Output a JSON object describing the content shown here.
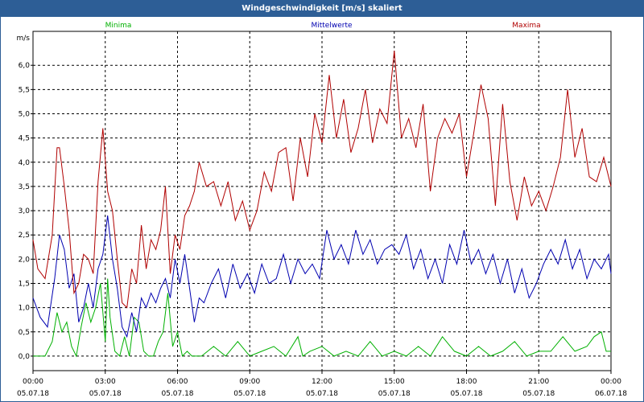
{
  "window": {
    "title": "Windgeschwindigkeit [m/s] skaliert"
  },
  "chart_data": {
    "type": "line",
    "title": "Windgeschwindigkeit [m/s] skaliert",
    "ylabel": "m/s",
    "xlabel": "",
    "ylim": [
      -0.3,
      6.7
    ],
    "yticks": [
      "0,0",
      "0,5",
      "1,0",
      "1,5",
      "2,0",
      "2,5",
      "3,0",
      "3,5",
      "4,0",
      "4,5",
      "5,0",
      "5,5",
      "6,0"
    ],
    "xlim_hours": [
      0,
      24
    ],
    "xticks": [
      {
        "time": "00:00",
        "date": "05.07.18"
      },
      {
        "time": "03:00",
        "date": "05.07.18"
      },
      {
        "time": "06:00",
        "date": "05.07.18"
      },
      {
        "time": "09:00",
        "date": "05.07.18"
      },
      {
        "time": "12:00",
        "date": "05.07.18"
      },
      {
        "time": "15:00",
        "date": "05.07.18"
      },
      {
        "time": "18:00",
        "date": "05.07.18"
      },
      {
        "time": "21:00",
        "date": "05.07.18"
      },
      {
        "time": "00:00",
        "date": "06.07.18"
      }
    ],
    "grid": true,
    "series": [
      {
        "name": "Minima",
        "color": "#00b000",
        "x": [
          0,
          0.5,
          0.8,
          1.0,
          1.2,
          1.4,
          1.6,
          1.8,
          2.0,
          2.2,
          2.4,
          2.6,
          2.8,
          3.0,
          3.1,
          3.2,
          3.4,
          3.6,
          3.8,
          4.0,
          4.2,
          4.4,
          4.6,
          4.8,
          5.0,
          5.2,
          5.4,
          5.6,
          5.8,
          6.0,
          6.2,
          6.4,
          6.6,
          6.8,
          7.0,
          7.5,
          8.0,
          8.5,
          9.0,
          9.5,
          10.0,
          10.5,
          11.0,
          11.2,
          11.5,
          12.0,
          12.5,
          13.0,
          13.5,
          14.0,
          14.5,
          15.0,
          15.5,
          16.0,
          16.5,
          17.0,
          17.5,
          18.0,
          18.5,
          19.0,
          19.5,
          20.0,
          20.5,
          21.0,
          21.5,
          22.0,
          22.5,
          23.0,
          23.3,
          23.6,
          23.8,
          24.0
        ],
        "values": [
          0.0,
          0.0,
          0.3,
          0.9,
          0.5,
          0.7,
          0.2,
          0.0,
          0.6,
          1.1,
          0.7,
          1.0,
          1.5,
          0.3,
          1.6,
          0.8,
          0.1,
          0.0,
          0.4,
          0.0,
          0.8,
          0.7,
          0.1,
          0.0,
          0.0,
          0.3,
          0.5,
          1.3,
          0.2,
          0.5,
          0.0,
          0.1,
          0.0,
          0.0,
          0.0,
          0.2,
          0.0,
          0.3,
          0.0,
          0.1,
          0.2,
          0.0,
          0.4,
          0.0,
          0.1,
          0.2,
          0.0,
          0.1,
          0.0,
          0.3,
          0.0,
          0.1,
          0.0,
          0.2,
          0.0,
          0.4,
          0.1,
          0.0,
          0.2,
          0.0,
          0.1,
          0.3,
          0.0,
          0.1,
          0.1,
          0.4,
          0.1,
          0.2,
          0.4,
          0.5,
          0.1,
          0.1
        ]
      },
      {
        "name": "Mittelwerte",
        "color": "#0000b0",
        "x": [
          0,
          0.3,
          0.6,
          0.9,
          1.1,
          1.3,
          1.5,
          1.7,
          1.9,
          2.1,
          2.3,
          2.5,
          2.7,
          2.9,
          3.1,
          3.3,
          3.5,
          3.7,
          3.9,
          4.1,
          4.3,
          4.5,
          4.7,
          4.9,
          5.1,
          5.3,
          5.5,
          5.7,
          5.9,
          6.1,
          6.3,
          6.5,
          6.7,
          6.9,
          7.1,
          7.4,
          7.7,
          8.0,
          8.3,
          8.6,
          8.9,
          9.2,
          9.5,
          9.8,
          10.1,
          10.4,
          10.7,
          11.0,
          11.3,
          11.6,
          11.9,
          12.2,
          12.5,
          12.8,
          13.1,
          13.4,
          13.7,
          14.0,
          14.3,
          14.6,
          14.9,
          15.2,
          15.5,
          15.8,
          16.1,
          16.4,
          16.7,
          17.0,
          17.3,
          17.6,
          17.9,
          18.2,
          18.5,
          18.8,
          19.1,
          19.4,
          19.7,
          20.0,
          20.3,
          20.6,
          20.9,
          21.2,
          21.5,
          21.8,
          22.1,
          22.4,
          22.7,
          23.0,
          23.3,
          23.6,
          23.9,
          24.0
        ],
        "values": [
          1.2,
          0.8,
          0.6,
          1.6,
          2.5,
          2.2,
          1.4,
          1.7,
          0.7,
          1.0,
          1.5,
          1.0,
          1.8,
          2.1,
          2.9,
          2.0,
          1.4,
          0.6,
          0.4,
          0.9,
          0.5,
          1.2,
          1.0,
          1.3,
          1.1,
          1.4,
          1.6,
          1.2,
          2.0,
          1.5,
          2.1,
          1.4,
          0.7,
          1.2,
          1.1,
          1.5,
          1.8,
          1.2,
          1.9,
          1.4,
          1.7,
          1.3,
          1.9,
          1.5,
          1.6,
          2.1,
          1.5,
          2.0,
          1.7,
          1.9,
          1.6,
          2.6,
          2.0,
          2.3,
          1.9,
          2.6,
          2.1,
          2.4,
          1.9,
          2.2,
          2.3,
          2.1,
          2.5,
          1.8,
          2.2,
          1.6,
          2.0,
          1.5,
          2.3,
          1.9,
          2.6,
          1.9,
          2.2,
          1.7,
          2.1,
          1.5,
          2.0,
          1.3,
          1.8,
          1.2,
          1.5,
          1.9,
          2.2,
          1.9,
          2.4,
          1.8,
          2.2,
          1.6,
          2.0,
          1.8,
          2.1,
          1.7
        ]
      },
      {
        "name": "Maxima",
        "color": "#b00000",
        "x": [
          0,
          0.2,
          0.5,
          0.8,
          1.0,
          1.1,
          1.3,
          1.5,
          1.7,
          1.9,
          2.1,
          2.3,
          2.5,
          2.7,
          2.9,
          3.1,
          3.3,
          3.5,
          3.7,
          3.9,
          4.1,
          4.3,
          4.5,
          4.7,
          4.9,
          5.1,
          5.3,
          5.5,
          5.7,
          5.9,
          6.1,
          6.3,
          6.5,
          6.7,
          6.9,
          7.2,
          7.5,
          7.8,
          8.1,
          8.4,
          8.7,
          9.0,
          9.3,
          9.6,
          9.9,
          10.2,
          10.5,
          10.8,
          11.1,
          11.4,
          11.7,
          12.0,
          12.3,
          12.6,
          12.9,
          13.2,
          13.5,
          13.8,
          14.1,
          14.4,
          14.7,
          15.0,
          15.3,
          15.6,
          15.9,
          16.2,
          16.5,
          16.8,
          17.1,
          17.4,
          17.7,
          18.0,
          18.3,
          18.6,
          18.9,
          19.2,
          19.5,
          19.8,
          20.1,
          20.4,
          20.7,
          21.0,
          21.3,
          21.6,
          21.9,
          22.2,
          22.5,
          22.8,
          23.1,
          23.4,
          23.7,
          24.0
        ],
        "values": [
          2.4,
          1.8,
          1.6,
          2.5,
          4.3,
          4.3,
          3.5,
          2.6,
          1.3,
          1.5,
          2.1,
          2.0,
          1.7,
          3.6,
          4.7,
          3.4,
          3.0,
          2.0,
          1.1,
          1.0,
          1.8,
          1.5,
          2.7,
          1.8,
          2.4,
          2.2,
          2.6,
          3.5,
          1.7,
          2.5,
          2.2,
          2.9,
          3.1,
          3.4,
          4.0,
          3.5,
          3.6,
          3.1,
          3.6,
          2.8,
          3.2,
          2.6,
          3.0,
          3.8,
          3.4,
          4.2,
          4.3,
          3.2,
          4.5,
          3.7,
          5.0,
          4.4,
          5.8,
          4.5,
          5.3,
          4.2,
          4.7,
          5.5,
          4.4,
          5.1,
          4.8,
          6.3,
          4.5,
          4.9,
          4.3,
          5.2,
          3.4,
          4.5,
          4.9,
          4.6,
          5.0,
          3.7,
          4.6,
          5.6,
          4.9,
          3.1,
          5.2,
          3.6,
          2.8,
          3.7,
          3.1,
          3.4,
          3.0,
          3.5,
          4.1,
          5.5,
          4.1,
          4.7,
          3.7,
          3.6,
          4.1,
          3.5
        ]
      }
    ]
  }
}
